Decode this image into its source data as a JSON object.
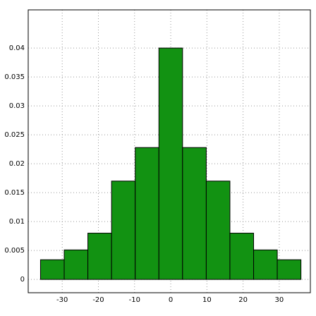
{
  "chart_data": {
    "type": "histogram",
    "bins": [
      -36,
      -29.45,
      -22.91,
      -16.36,
      -9.82,
      -3.27,
      3.27,
      9.82,
      16.36,
      22.91,
      29.45,
      36
    ],
    "values": [
      0.0034,
      0.0051,
      0.008,
      0.017,
      0.0228,
      0.04,
      0.0228,
      0.017,
      0.008,
      0.0051,
      0.0034
    ],
    "color": "#129212",
    "xlim": [
      -39.4,
      38.6
    ],
    "ylim": [
      -0.0023,
      0.0466
    ],
    "xticks": [
      -30,
      -20,
      -10,
      0,
      10,
      20,
      30
    ],
    "yticks": [
      0,
      0.005,
      0.01,
      0.015,
      0.02,
      0.025,
      0.03,
      0.035,
      0.04
    ],
    "grid": true
  }
}
